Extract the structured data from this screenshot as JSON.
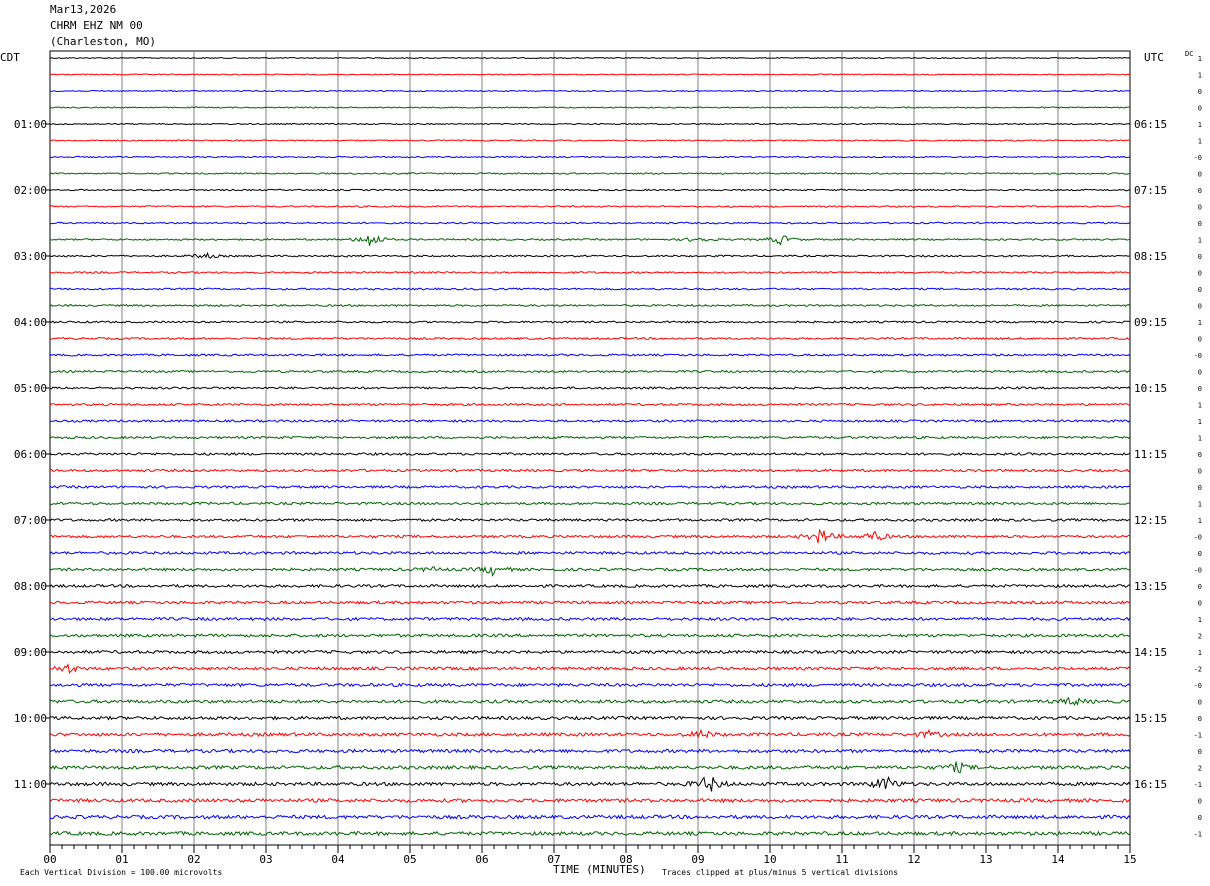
{
  "header": {
    "date": "Mar13,2026",
    "station": "CHRM EHZ NM 00",
    "location": "(Charleston, MO)"
  },
  "left_tz": "CDT",
  "right_tz": "UTC",
  "dc_label": "DC",
  "footer": {
    "division_note": "Each Vertical Division =  100.00 microvolts",
    "xlabel": "TIME (MINUTES)",
    "clip_note": "Traces clipped at plus/minus 5 vertical divisions"
  },
  "colors": {
    "black": "#000000",
    "red": "#ff0000",
    "blue": "#0000ff",
    "green": "#006400",
    "grid": "#808080"
  },
  "chart_data": {
    "type": "line",
    "title": "CHRM EHZ NM 00",
    "xlabel": "TIME (MINUTES)",
    "ylabel": "",
    "xlim": [
      0,
      15
    ],
    "x_ticks": [
      "00",
      "01",
      "02",
      "03",
      "04",
      "05",
      "06",
      "07",
      "08",
      "09",
      "10",
      "11",
      "12",
      "13",
      "14",
      "15"
    ],
    "left_hour_labels": [
      "01:00",
      "02:00",
      "03:00",
      "04:00",
      "05:00",
      "06:00",
      "07:00",
      "08:00",
      "09:00",
      "10:00",
      "11:00"
    ],
    "right_hour_labels": [
      "06:15",
      "07:15",
      "08:15",
      "09:15",
      "10:15",
      "11:15",
      "12:15",
      "13:15",
      "14:15",
      "15:15",
      "16:15"
    ],
    "trace_count": 48,
    "trace_colors": [
      "black",
      "red",
      "blue",
      "green"
    ],
    "dc_offsets": [
      "1",
      "1",
      "0",
      "0",
      "1",
      "1",
      "-0",
      "0",
      "0",
      "0",
      "0",
      "1",
      "0",
      "0",
      "0",
      "0",
      "1",
      "0",
      "-0",
      "0",
      "0",
      "1",
      "1",
      "1",
      "0",
      "0",
      "0",
      "1",
      "1",
      "-0",
      "0",
      "-0",
      "0",
      "0",
      "1",
      "2",
      "1",
      "-2",
      "-0",
      "0",
      "0",
      "-1",
      "0",
      "2",
      "-1",
      "0",
      "0",
      "-1"
    ],
    "events": [
      {
        "trace": 11,
        "center_min": 4.45,
        "amplitude": 8
      },
      {
        "trace": 11,
        "center_min": 10.15,
        "amplitude": 5
      },
      {
        "trace": 11,
        "center_min": 9.0,
        "amplitude": 3
      },
      {
        "trace": 12,
        "center_min": 2.15,
        "amplitude": 3
      },
      {
        "trace": 29,
        "center_min": 10.7,
        "amplitude": 8
      },
      {
        "trace": 29,
        "center_min": 11.45,
        "amplitude": 5
      },
      {
        "trace": 31,
        "center_min": 6.15,
        "amplitude": 5
      },
      {
        "trace": 31,
        "center_min": 5.3,
        "amplitude": 2
      },
      {
        "trace": 37,
        "center_min": 0.25,
        "amplitude": 4
      },
      {
        "trace": 41,
        "center_min": 9.05,
        "amplitude": 4
      },
      {
        "trace": 41,
        "center_min": 12.2,
        "amplitude": 3
      },
      {
        "trace": 43,
        "center_min": 12.6,
        "amplitude": 5
      },
      {
        "trace": 44,
        "center_min": 9.15,
        "amplitude": 9
      },
      {
        "trace": 44,
        "center_min": 11.6,
        "amplitude": 8
      },
      {
        "trace": 39,
        "center_min": 14.2,
        "amplitude": 4
      }
    ]
  }
}
